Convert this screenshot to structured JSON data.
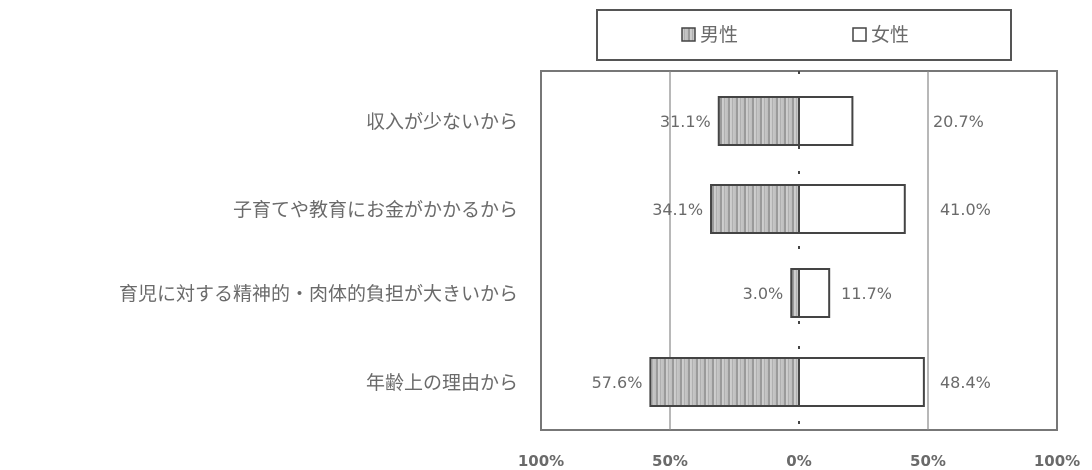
{
  "chart_data": {
    "type": "bar",
    "orientation": "horizontal-diverging",
    "categories": [
      "収入が少ないから",
      "子育てや教育にお金がかかるから",
      "育児に対する精神的・肉体的負担が大きいから",
      "年齢上の理由から"
    ],
    "series": [
      {
        "name": "男性",
        "direction": "left",
        "values": [
          31.1,
          34.1,
          3.0,
          57.6
        ],
        "labels": [
          "31.1%",
          "34.1%",
          "3.0%",
          "57.6%"
        ],
        "fill": "hatched-gray"
      },
      {
        "name": "女性",
        "direction": "right",
        "values": [
          20.7,
          41.0,
          11.7,
          48.4
        ],
        "labels": [
          "20.7%",
          "41.0%",
          "11.7%",
          "48.4%"
        ],
        "fill": "white"
      }
    ],
    "xlim": [
      -100,
      100
    ],
    "xticks": [
      -100,
      -50,
      0,
      50,
      100
    ],
    "xtick_labels": [
      "100%",
      "50%",
      "0%",
      "50%",
      "100%"
    ],
    "grid": "vertical-lines-at-50",
    "legend": "top",
    "colors": {
      "male_fill": "#c8c8c8",
      "male_stripe": "#8a8a8a",
      "female_fill": "#ffffff",
      "outline": "#444444"
    }
  }
}
